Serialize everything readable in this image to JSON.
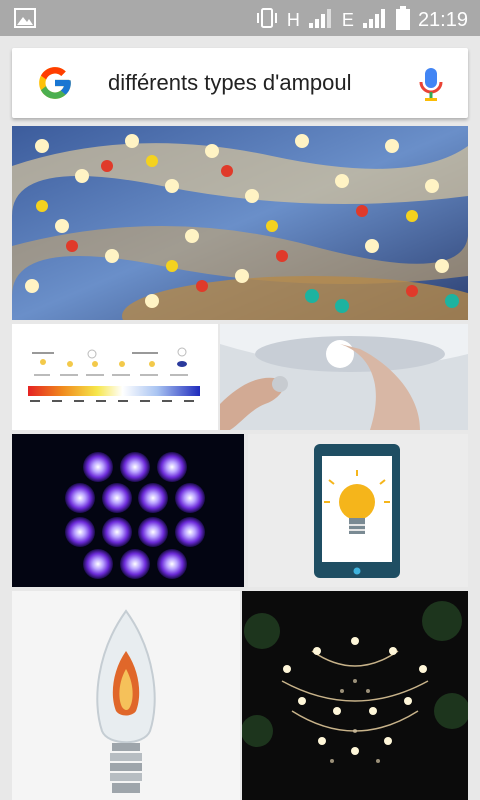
{
  "status_bar": {
    "network_1": "H",
    "network_2": "E",
    "time": "21:19"
  },
  "search": {
    "query": "différents types d'ampoul",
    "logo_icon": "google-g-logo",
    "mic_icon": "microphone-icon"
  },
  "results": {
    "items": [
      {
        "name": "carousel-ceiling-lights"
      },
      {
        "name": "color-temperature-chart"
      },
      {
        "name": "hand-changing-bulb"
      },
      {
        "name": "purple-led-array"
      },
      {
        "name": "phone-bulb-icon"
      },
      {
        "name": "candle-flame-bulb"
      },
      {
        "name": "crystal-chandelier"
      }
    ]
  }
}
